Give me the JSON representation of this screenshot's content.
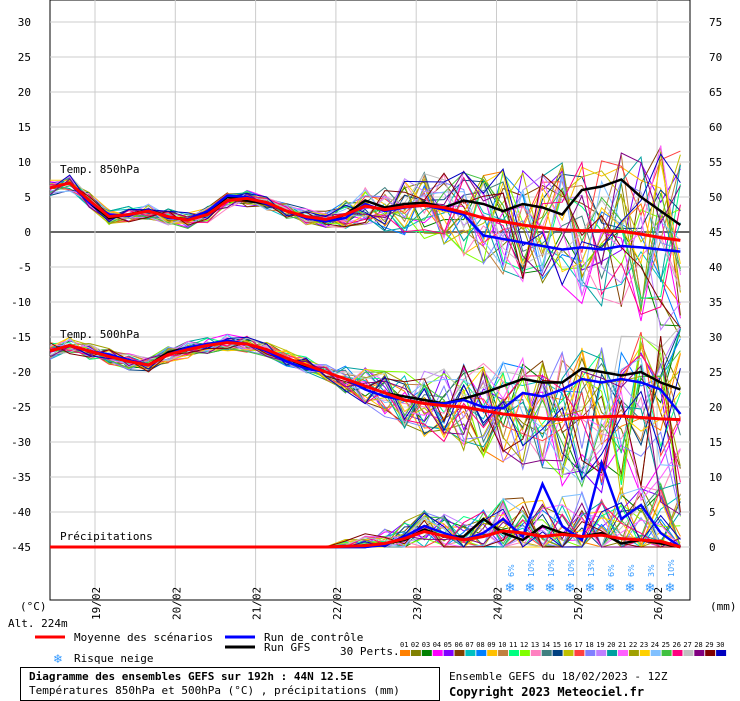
{
  "chart_data": {
    "type": "line",
    "title": "Diagramme des ensembles GEFS sur 192h : 44N 12.5E",
    "subtitle": "Températures 850hPa et 500hPa (°C) , précipitations (mm)",
    "left_axis": {
      "unit": "(°C)",
      "ticks": [
        30,
        25,
        20,
        15,
        10,
        5,
        0,
        -5,
        -10,
        -15,
        -20,
        -25,
        -30,
        -35,
        -40,
        -45
      ],
      "range": [
        -45,
        30
      ]
    },
    "right_axis": {
      "unit": "(mm)",
      "ticks": [
        75,
        70,
        65,
        60,
        55,
        50,
        45,
        40,
        35,
        30,
        25,
        20,
        15,
        10,
        5,
        0
      ],
      "range": [
        0,
        75
      ]
    },
    "x_labels": [
      "19/02",
      "20/02",
      "21/02",
      "22/02",
      "23/02",
      "24/02",
      "25/02",
      "26/02"
    ],
    "section_labels": {
      "t850": "Temp. 850hPa",
      "t500": "Temp. 500hPa",
      "precip": "Précipitations"
    },
    "altitude": "Alt. 224m",
    "snow_risk": [
      "6%",
      "10%",
      "10%",
      "10%",
      "13%",
      "6%",
      "6%",
      "3%",
      "10%"
    ],
    "series": [
      {
        "name": "Moyenne des scénarios",
        "color": "#ff0000",
        "t850": [
          6.3,
          7,
          4.5,
          2.2,
          2.5,
          3,
          2.2,
          1.7,
          2.5,
          4.5,
          4.8,
          4.2,
          3,
          2.2,
          1.8,
          2.5,
          3.7,
          3.2,
          3.6,
          3.8,
          3.5,
          2.8,
          2,
          1.5,
          1,
          0.6,
          0.3,
          0.2,
          0.2,
          0.1,
          -0.3,
          -0.8,
          -1.2
        ],
        "t500": [
          -17,
          -16.2,
          -17,
          -17.8,
          -18.5,
          -19,
          -17.5,
          -16.8,
          -16.2,
          -15.8,
          -16,
          -16.8,
          -18,
          -19,
          -20,
          -21,
          -22,
          -23,
          -24,
          -24.5,
          -24.8,
          -25,
          -25.5,
          -26,
          -26.3,
          -26.6,
          -26.8,
          -26.5,
          -26.4,
          -26.3,
          -26.5,
          -26.7,
          -26.8
        ],
        "precip": [
          0,
          0,
          0,
          0,
          0,
          0,
          0,
          0,
          0,
          0,
          0,
          0,
          0,
          0,
          0,
          0.1,
          0.2,
          0.5,
          1.2,
          2.2,
          1.6,
          1,
          1.5,
          2.3,
          2,
          1.5,
          1.8,
          1.5,
          1.7,
          1.2,
          1,
          0.8,
          0
        ]
      },
      {
        "name": "Run de contrôle",
        "color": "#0000ff",
        "t850": [
          6.3,
          7,
          4.2,
          2.5,
          2.3,
          3.2,
          2,
          1.8,
          3,
          5.2,
          5,
          4,
          3,
          2,
          1.5,
          2,
          4,
          3,
          3.5,
          3.8,
          3.2,
          2.5,
          -0.5,
          -1,
          -1.5,
          -2,
          -2.5,
          -2.2,
          -2.5,
          -2,
          -2.2,
          -2.5,
          -2.8
        ],
        "t500": [
          -17,
          -16.2,
          -17,
          -17.5,
          -18.3,
          -19,
          -17.5,
          -16.5,
          -16,
          -15.5,
          -16,
          -17,
          -18.5,
          -19.5,
          -20,
          -21,
          -22.5,
          -23.5,
          -24,
          -24.5,
          -24.5,
          -24,
          -25,
          -25.2,
          -23,
          -23.5,
          -22.5,
          -21,
          -21.5,
          -21,
          -21.5,
          -22.5,
          -26
        ],
        "precip": [
          0,
          0,
          0,
          0,
          0,
          0,
          0,
          0,
          0,
          0,
          0,
          0,
          0,
          0,
          0,
          0,
          0,
          0.3,
          1.5,
          3,
          2,
          1,
          2,
          4,
          1.5,
          9,
          3,
          1,
          12,
          4,
          6,
          2,
          0
        ]
      },
      {
        "name": "Run GFS",
        "color": "#000000",
        "t850": [
          6.3,
          7,
          4.2,
          2,
          2.5,
          3.2,
          2.2,
          1.8,
          2.8,
          5,
          4.5,
          4,
          3,
          2,
          1.5,
          2.5,
          4.5,
          3.5,
          4,
          4.2,
          3.5,
          4.5,
          4,
          3,
          4,
          3.5,
          2.5,
          6,
          6.5,
          7.5,
          5,
          3,
          1
        ],
        "t500": [
          -17,
          -16.2,
          -17,
          -17.8,
          -18.5,
          -19,
          -17.2,
          -16.5,
          -16,
          -15.7,
          -16,
          -17,
          -18,
          -19.2,
          -20,
          -21,
          -22,
          -23,
          -23.5,
          -24,
          -24.5,
          -23.8,
          -23,
          -22,
          -21,
          -21.5,
          -21.5,
          -19.5,
          -20,
          -20.5,
          -20,
          -21.5,
          -22.5
        ],
        "precip": [
          0,
          0,
          0,
          0,
          0,
          0,
          0,
          0,
          0,
          0,
          0,
          0,
          0,
          0,
          0,
          0,
          0,
          0.5,
          1,
          2.5,
          1.5,
          1.5,
          4,
          2,
          1,
          3,
          2,
          1.5,
          2,
          0.5,
          1,
          0.5,
          0
        ]
      }
    ]
  },
  "legend": {
    "mean": "Moyenne des scénarios",
    "control": "Run de contrôle",
    "gfs": "Run GFS",
    "snow": "Risque neige",
    "perts_label": "30 Perts.",
    "pert_numbers": [
      "01",
      "02",
      "03",
      "04",
      "05",
      "06",
      "07",
      "08",
      "09",
      "10",
      "11",
      "12",
      "13",
      "14",
      "15",
      "16",
      "17",
      "18",
      "19",
      "20",
      "21",
      "22",
      "23",
      "24",
      "25",
      "26",
      "27",
      "28",
      "29",
      "30"
    ],
    "pert_colors": [
      "#ff8000",
      "#808000",
      "#008000",
      "#ff00ff",
      "#8000ff",
      "#804000",
      "#00c0c0",
      "#0080ff",
      "#ffc000",
      "#c08040",
      "#00ff80",
      "#80ff00",
      "#ff80c0",
      "#408080",
      "#004080",
      "#c0c000",
      "#ff4040",
      "#8080ff",
      "#c080ff",
      "#00a0a0",
      "#ff60ff",
      "#a0a000",
      "#ffd000",
      "#80c0ff",
      "#40c040",
      "#ff0080",
      "#c0c0c0",
      "#800080",
      "#800000",
      "#0000c0"
    ]
  },
  "footer": {
    "title": "Diagramme des ensembles GEFS sur 192h : 44N 12.5E",
    "subtitle": "Températures 850hPa et 500hPa (°C) , précipitations (mm)",
    "run": "Ensemble GEFS du 18/02/2023 - 12Z",
    "copyright": "Copyright 2023 Meteociel.fr"
  }
}
